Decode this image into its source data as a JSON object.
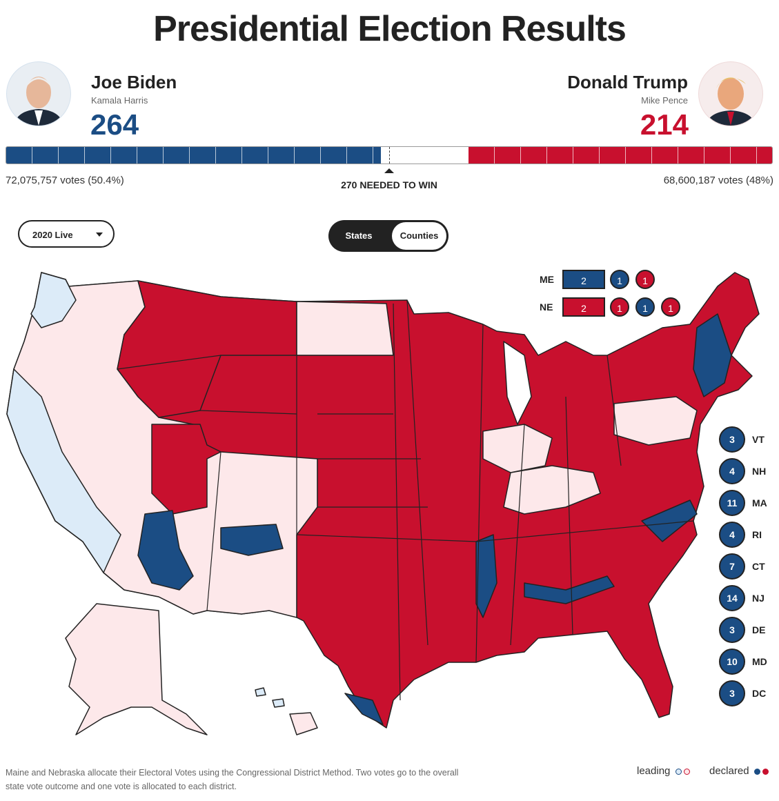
{
  "title": "Presidential Election Results",
  "candidates": [
    {
      "name": "Joe Biden",
      "running_mate": "Kamala Harris",
      "electoral_votes": 264,
      "votes_label": "72,075,757 votes (50.4%)",
      "color": "#1b4d84"
    },
    {
      "name": "Donald Trump",
      "running_mate": "Mike Pence",
      "electoral_votes": 214,
      "votes_label": "68,600,187 votes (48%)",
      "color": "#c8102e"
    }
  ],
  "win_marker": {
    "value": 270,
    "label": "270 NEEDED TO WIN"
  },
  "year_select": "2020 Live",
  "view_toggle": [
    "States",
    "Counties"
  ],
  "split_states": [
    {
      "state": "ME",
      "districts": [
        {
          "votes": 2,
          "color": "#1b4d84"
        },
        {
          "votes": 1,
          "color": "#1b4d84"
        },
        {
          "votes": 1,
          "color": "#c8102e"
        }
      ]
    },
    {
      "state": "NE",
      "districts": [
        {
          "votes": 2,
          "color": "#c8102e"
        },
        {
          "votes": 1,
          "color": "#c8102e"
        },
        {
          "votes": 1,
          "color": "#1b4d84"
        },
        {
          "votes": 1,
          "color": "#c8102e"
        }
      ]
    }
  ],
  "small_states": [
    {
      "state": "VT",
      "votes": 3
    },
    {
      "state": "NH",
      "votes": 4
    },
    {
      "state": "MA",
      "votes": 11
    },
    {
      "state": "RI",
      "votes": 4
    },
    {
      "state": "CT",
      "votes": 7
    },
    {
      "state": "NJ",
      "votes": 14
    },
    {
      "state": "DE",
      "votes": 3
    },
    {
      "state": "MD",
      "votes": 10
    },
    {
      "state": "DC",
      "votes": 3
    }
  ],
  "footnote": "Maine and Nebraska allocate their Electoral Votes using the Congressional District Method. Two votes go to the overall state vote outcome and one vote is allocated to each district.",
  "legend": [
    "leading",
    "declared"
  ]
}
